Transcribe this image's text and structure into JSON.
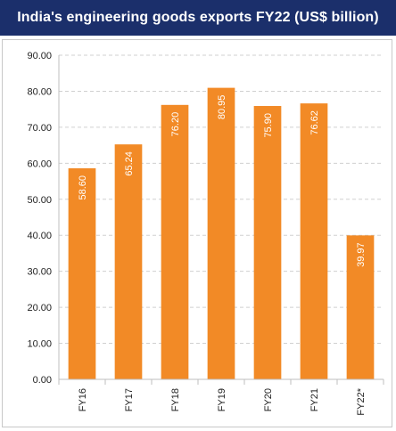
{
  "chart_data": {
    "type": "bar",
    "title": "India's engineering goods exports FY22 (US$ billion)",
    "categories": [
      "FY16",
      "FY17",
      "FY18",
      "FY19",
      "FY20",
      "FY21",
      "FY22*"
    ],
    "values": [
      58.6,
      65.24,
      76.2,
      80.95,
      75.9,
      76.62,
      39.97
    ],
    "data_labels": [
      "58.60",
      "65.24",
      "76.20",
      "80.95",
      "75.90",
      "76.62",
      "39.97"
    ],
    "y_ticks": [
      "0.00",
      "10.00",
      "20.00",
      "30.00",
      "40.00",
      "50.00",
      "60.00",
      "70.00",
      "80.00",
      "90.00"
    ],
    "ylim": [
      0,
      90
    ],
    "grid": true,
    "bar_color": "#f28a26",
    "title_bg": "#1b2f6b"
  }
}
